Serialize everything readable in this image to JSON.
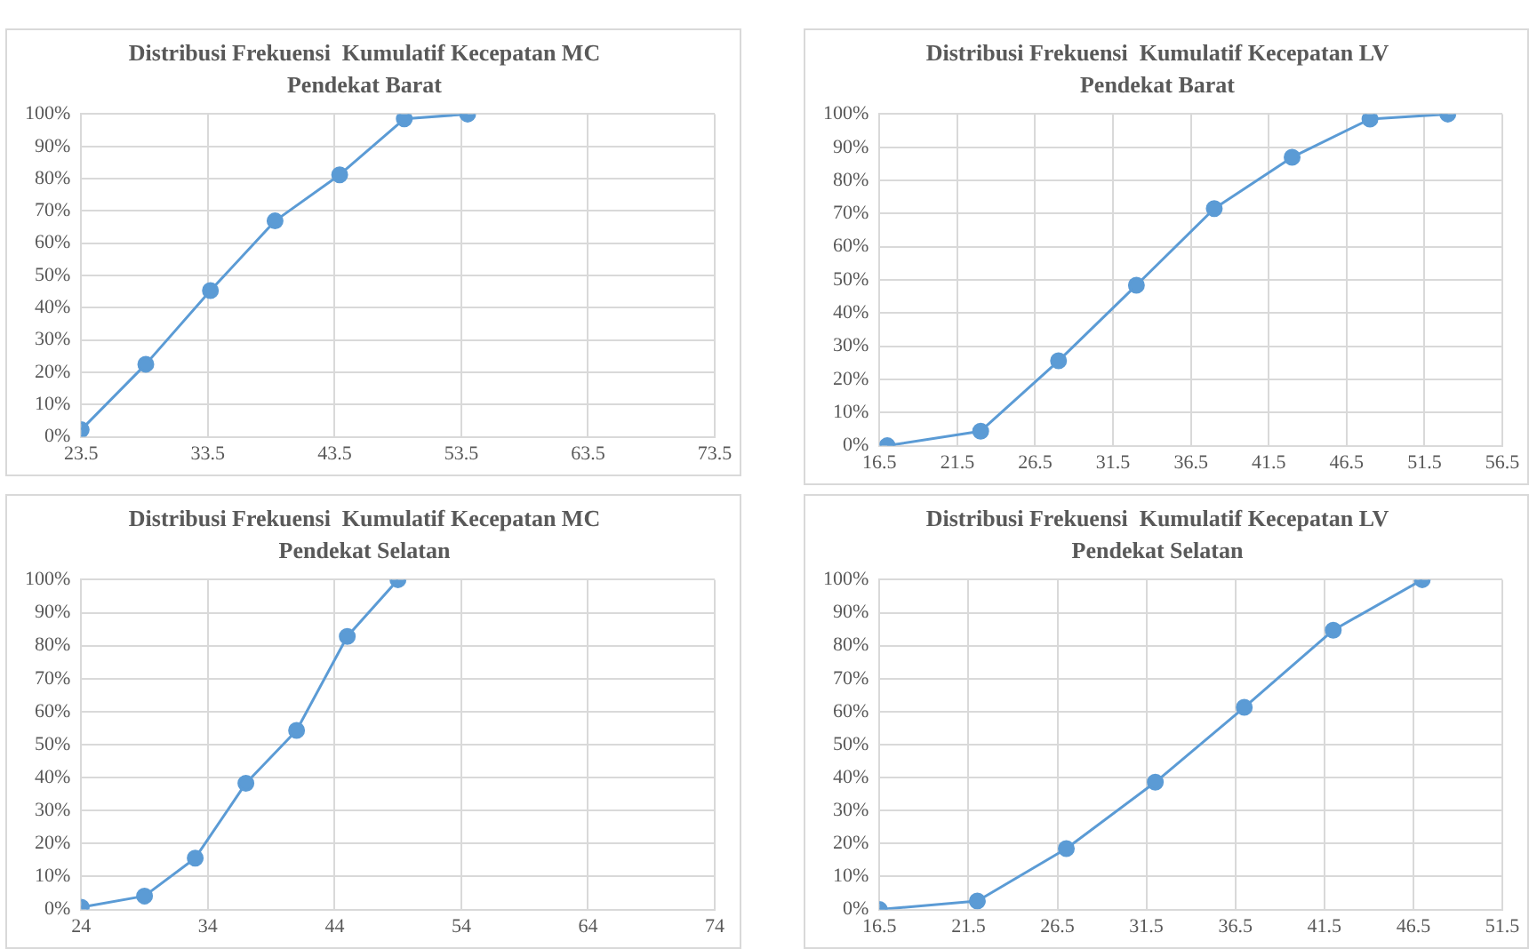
{
  "chart_data": [
    {
      "type": "line",
      "title": "Distribusi Frekuensi  Kumulatif Kecepatan MC",
      "subtitle": "Pendekat Barat",
      "x": [
        23.5,
        28.6,
        33.7,
        38.8,
        43.9,
        49.0,
        54.0
      ],
      "values": [
        2.2,
        22.5,
        45.3,
        66.9,
        81.2,
        98.5,
        100
      ],
      "color": "#5b9bd5",
      "marker": "circle",
      "line_style": "solid",
      "grid": true,
      "xlim": [
        23.5,
        73.5
      ],
      "xticks": [
        23.5,
        33.5,
        43.5,
        53.5,
        63.5,
        73.5
      ],
      "ylim": [
        0,
        100
      ],
      "yticks": [
        {
          "value": 0,
          "label": "0%"
        },
        {
          "value": 10,
          "label": "10%"
        },
        {
          "value": 20,
          "label": "20%"
        },
        {
          "value": 30,
          "label": "30%"
        },
        {
          "value": 40,
          "label": "40%"
        },
        {
          "value": 50,
          "label": "50%"
        },
        {
          "value": 60,
          "label": "60%"
        },
        {
          "value": 70,
          "label": "70%"
        },
        {
          "value": 80,
          "label": "80%"
        },
        {
          "value": 90,
          "label": "90%"
        },
        {
          "value": 100,
          "label": "100%"
        }
      ]
    },
    {
      "type": "line",
      "title": "Distribusi Frekuensi  Kumulatif Kecepatan LV",
      "subtitle": "Pendekat Barat",
      "x": [
        17,
        23,
        28,
        33,
        38,
        43,
        48,
        53
      ],
      "values": [
        0,
        4.4,
        25.6,
        48.4,
        71.5,
        87,
        98.5,
        100
      ],
      "color": "#5b9bd5",
      "marker": "circle",
      "line_style": "solid",
      "grid": true,
      "xlim": [
        16.5,
        56.5
      ],
      "xticks": [
        16.5,
        21.5,
        26.5,
        31.5,
        36.5,
        41.5,
        46.5,
        51.5,
        56.5
      ],
      "ylim": [
        0,
        100
      ],
      "yticks": [
        {
          "value": 0,
          "label": "0%"
        },
        {
          "value": 10,
          "label": "10%"
        },
        {
          "value": 20,
          "label": "20%"
        },
        {
          "value": 30,
          "label": "30%"
        },
        {
          "value": 40,
          "label": "40%"
        },
        {
          "value": 50,
          "label": "50%"
        },
        {
          "value": 60,
          "label": "60%"
        },
        {
          "value": 70,
          "label": "70%"
        },
        {
          "value": 80,
          "label": "80%"
        },
        {
          "value": 90,
          "label": "90%"
        },
        {
          "value": 100,
          "label": "100%"
        }
      ]
    },
    {
      "type": "line",
      "title": "Distribusi Frekuensi  Kumulatif Kecepatan MC",
      "subtitle": "Pendekat Selatan",
      "x": [
        24,
        29,
        33,
        37,
        41,
        45,
        49
      ],
      "values": [
        0.7,
        4.1,
        15.6,
        38.3,
        54.3,
        82.8,
        100
      ],
      "color": "#5b9bd5",
      "marker": "circle",
      "line_style": "solid",
      "grid": true,
      "xlim": [
        24,
        74
      ],
      "xticks": [
        24,
        34,
        44,
        54,
        64,
        74
      ],
      "ylim": [
        0,
        100
      ],
      "yticks": [
        {
          "value": 0,
          "label": "0%"
        },
        {
          "value": 10,
          "label": "10%"
        },
        {
          "value": 20,
          "label": "20%"
        },
        {
          "value": 30,
          "label": "30%"
        },
        {
          "value": 40,
          "label": "40%"
        },
        {
          "value": 50,
          "label": "50%"
        },
        {
          "value": 60,
          "label": "60%"
        },
        {
          "value": 70,
          "label": "70%"
        },
        {
          "value": 80,
          "label": "80%"
        },
        {
          "value": 90,
          "label": "90%"
        },
        {
          "value": 100,
          "label": "100%"
        }
      ]
    },
    {
      "type": "line",
      "title": "Distribusi Frekuensi  Kumulatif Kecepatan LV",
      "subtitle": "Pendekat Selatan",
      "x": [
        16.5,
        22,
        27,
        32,
        37,
        42,
        47
      ],
      "values": [
        0,
        2.6,
        18.5,
        38.6,
        61.3,
        84.7,
        100
      ],
      "color": "#5b9bd5",
      "marker": "circle",
      "line_style": "solid",
      "grid": true,
      "xlim": [
        16.5,
        51.5
      ],
      "xticks": [
        16.5,
        21.5,
        26.5,
        31.5,
        36.5,
        41.5,
        46.5,
        51.5
      ],
      "ylim": [
        0,
        100
      ],
      "yticks": [
        {
          "value": 0,
          "label": "0%"
        },
        {
          "value": 10,
          "label": "10%"
        },
        {
          "value": 20,
          "label": "20%"
        },
        {
          "value": 30,
          "label": "30%"
        },
        {
          "value": 40,
          "label": "40%"
        },
        {
          "value": 50,
          "label": "50%"
        },
        {
          "value": 60,
          "label": "60%"
        },
        {
          "value": 70,
          "label": "70%"
        },
        {
          "value": 80,
          "label": "80%"
        },
        {
          "value": 90,
          "label": "90%"
        },
        {
          "value": 100,
          "label": "100%"
        }
      ]
    }
  ]
}
